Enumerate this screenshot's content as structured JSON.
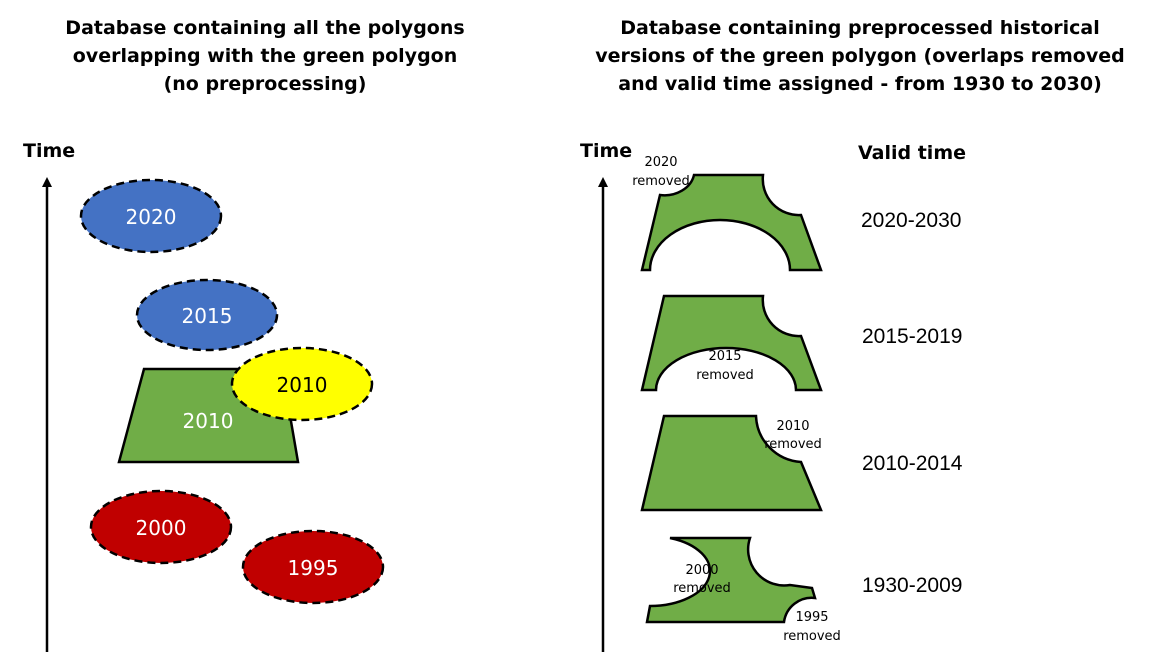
{
  "left_panel": {
    "title": "Database containing all the polygons\noverlapping with the green polygon\n(no preprocessing)",
    "axis_label": "Time",
    "shapes": [
      {
        "label": "2020",
        "color": "#4472c4"
      },
      {
        "label": "2015",
        "color": "#4472c4"
      },
      {
        "label": "2010",
        "color": "#70ad47"
      },
      {
        "label": "2010",
        "color": "#ffff00"
      },
      {
        "label": "2000",
        "color": "#c00000"
      },
      {
        "label": "1995",
        "color": "#c00000"
      }
    ]
  },
  "right_panel": {
    "title": "Database containing preprocessed historical\nversions of the green polygon (overlaps removed\nand valid time assigned - from 1930 to 2030)",
    "axis_label": "Time",
    "valid_time_header": "Valid time",
    "polygon_color": "#70ad47",
    "rows": [
      {
        "valid_time": "2020-2030",
        "notes": [
          "2020",
          "removed"
        ]
      },
      {
        "valid_time": "2015-2019",
        "notes": [
          "2015",
          "removed"
        ]
      },
      {
        "valid_time": "2010-2014",
        "notes": [
          "2010",
          "removed"
        ]
      },
      {
        "valid_time": "1930-2009",
        "notes": [
          "2000",
          "removed",
          "1995",
          "removed"
        ]
      }
    ]
  }
}
